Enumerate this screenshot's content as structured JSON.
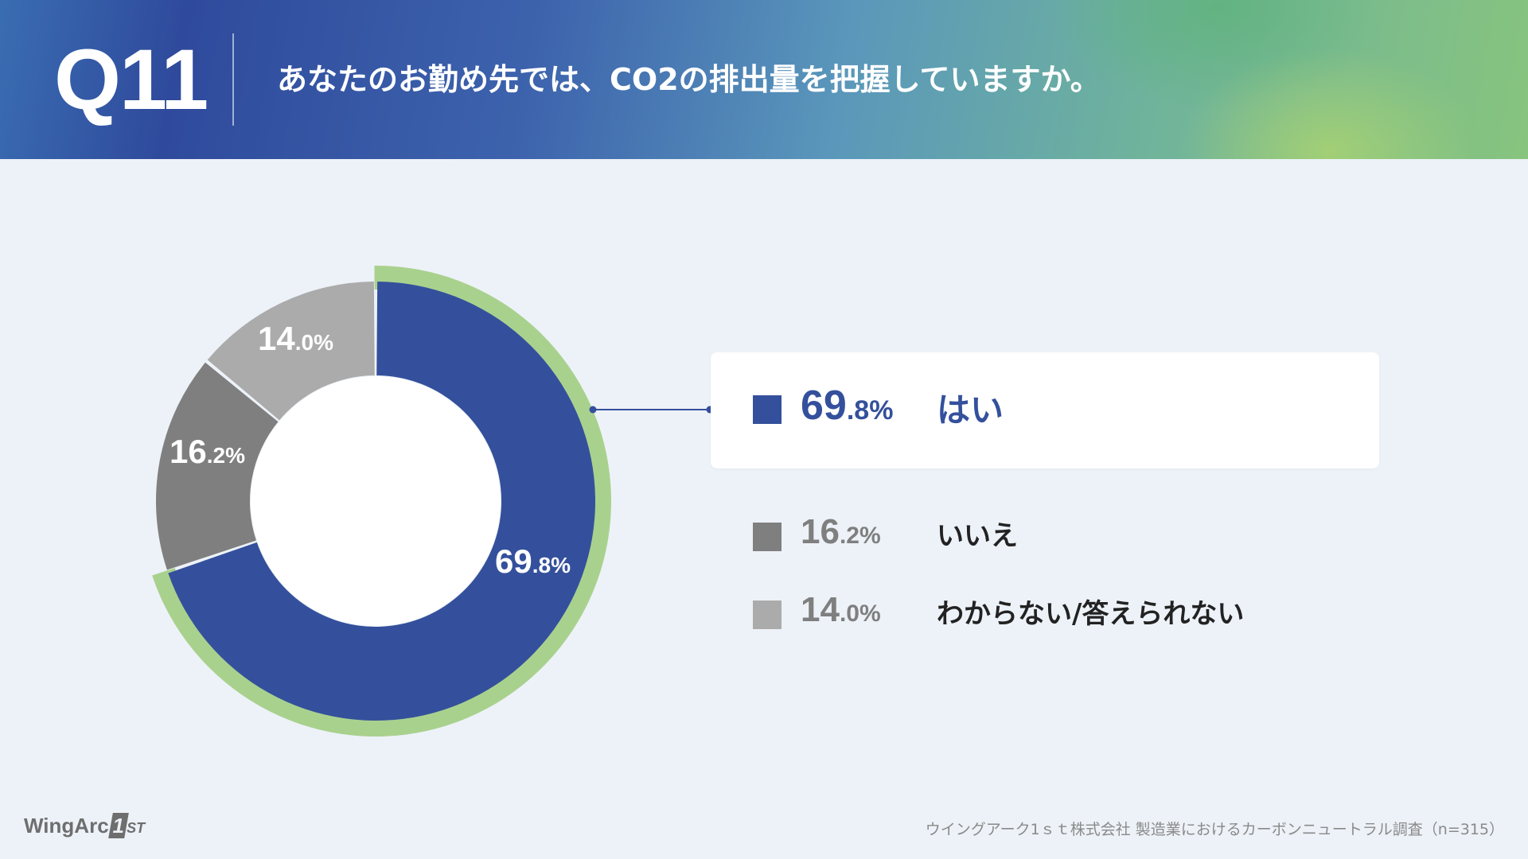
{
  "header": {
    "question_number": "Q11",
    "question_text": "あなたのお勤め先では、CO2の排出量を把握していますか。"
  },
  "chart_data": {
    "type": "pie",
    "style": "donut",
    "categories": [
      "はい",
      "いいえ",
      "わからない/答えられない"
    ],
    "values": [
      69.8,
      16.2,
      14.0
    ],
    "colors": [
      "#34509c",
      "#7f7f7f",
      "#ababab"
    ],
    "highlight_color": "#a9d18e",
    "highlighted": "はい",
    "slice_labels": [
      {
        "int": "69",
        "dec": ".8%"
      },
      {
        "int": "16",
        "dec": ".2%"
      },
      {
        "int": "14",
        "dec": ".0%"
      }
    ]
  },
  "legend": [
    {
      "int": "69",
      "dec": ".8%",
      "label": "はい",
      "color": "#34509c",
      "text_color": "#34509c",
      "highlight": true
    },
    {
      "int": "16",
      "dec": ".2%",
      "label": "いいえ",
      "color": "#7f7f7f",
      "text_color": "#7f7f7f",
      "highlight": false
    },
    {
      "int": "14",
      "dec": ".0%",
      "label": "わからない/答えられない",
      "color": "#ababab",
      "text_color": "#7f7f7f",
      "highlight": false
    }
  ],
  "footer": {
    "logo_text": "WingArc",
    "logo_one": "1",
    "logo_st": "ST",
    "source": "ウイングアーク1ｓｔ株式会社 製造業におけるカーボンニュートラル調査（n=315）"
  }
}
